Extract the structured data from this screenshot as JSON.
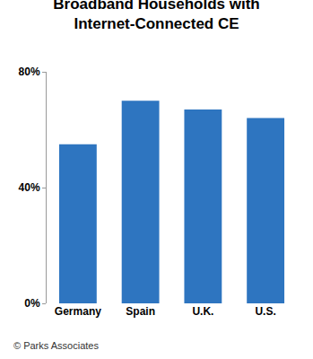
{
  "chart_data": {
    "type": "bar",
    "title": "Broadband Households with Internet-Connected CE",
    "categories": [
      "Germany",
      "Spain",
      "U.K.",
      "U.S."
    ],
    "values": [
      55,
      70,
      67,
      64
    ],
    "color": "#2e75c0",
    "ylim": [
      0,
      80
    ],
    "yticks": [
      {
        "value": 0,
        "label": "0%"
      },
      {
        "value": 40,
        "label": "40%"
      },
      {
        "value": 80,
        "label": "80%"
      }
    ],
    "grid": false,
    "annotations": [
      "© Parks Associates"
    ]
  }
}
